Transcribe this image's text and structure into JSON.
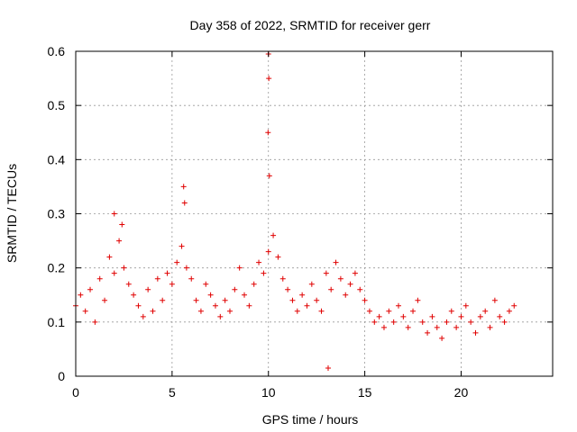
{
  "colors": {
    "series": "#e00000",
    "grid": "#999999",
    "axis": "#000000"
  },
  "chart_data": {
    "type": "scatter",
    "title": "Day 358 of 2022, SRMTID for receiver gerr",
    "xlabel": "GPS time / hours",
    "ylabel": "SRMTID / TECUs",
    "xlim": [
      0,
      24.75
    ],
    "ylim": [
      0,
      0.6
    ],
    "xticks": [
      0,
      5,
      10,
      15,
      20
    ],
    "xtick_labels": [
      "0",
      "5",
      "10",
      "15",
      "20"
    ],
    "yticks": [
      0,
      0.1,
      0.2,
      0.3,
      0.4,
      0.5,
      0.6
    ],
    "ytick_labels": [
      "0",
      "0.1",
      "0.2",
      "0.3",
      "0.4",
      "0.5",
      "0.6"
    ],
    "grid": true,
    "marker": "+",
    "series": [
      {
        "name": "SRMTID",
        "x": [
          0.0,
          0.25,
          0.5,
          0.75,
          1.0,
          1.25,
          1.5,
          1.75,
          2.0,
          2.25,
          2.5,
          2.75,
          3.0,
          3.25,
          3.5,
          3.75,
          4.0,
          4.25,
          4.5,
          4.75,
          5.0,
          5.25,
          5.5,
          5.75,
          6.0,
          6.25,
          6.5,
          6.75,
          7.0,
          7.25,
          7.5,
          7.75,
          8.0,
          8.25,
          8.5,
          8.75,
          9.0,
          9.25,
          9.5,
          9.75,
          10.0,
          10.25,
          10.5,
          10.75,
          11.0,
          11.25,
          11.5,
          11.75,
          12.0,
          12.25,
          12.5,
          12.75,
          13.0,
          13.25,
          13.5,
          13.75,
          14.0,
          14.25,
          14.5,
          14.75,
          15.0,
          15.25,
          15.5,
          15.75,
          16.0,
          16.25,
          16.5,
          16.75,
          17.0,
          17.25,
          17.5,
          17.75,
          18.0,
          18.25,
          18.5,
          18.75,
          19.0,
          19.25,
          19.5,
          19.75,
          20.0,
          20.25,
          20.5,
          20.75,
          21.0,
          21.25,
          21.5,
          21.75,
          22.0,
          22.25,
          22.5,
          22.75,
          9.98,
          10.0,
          10.02,
          10.05,
          5.6,
          5.65,
          13.1,
          2.0,
          2.4
        ],
        "y": [
          0.13,
          0.15,
          0.12,
          0.16,
          0.1,
          0.18,
          0.14,
          0.22,
          0.19,
          0.25,
          0.2,
          0.17,
          0.15,
          0.13,
          0.11,
          0.16,
          0.12,
          0.18,
          0.14,
          0.19,
          0.17,
          0.21,
          0.24,
          0.2,
          0.18,
          0.14,
          0.12,
          0.17,
          0.15,
          0.13,
          0.11,
          0.14,
          0.12,
          0.16,
          0.2,
          0.15,
          0.13,
          0.17,
          0.21,
          0.19,
          0.23,
          0.26,
          0.22,
          0.18,
          0.16,
          0.14,
          0.12,
          0.15,
          0.13,
          0.17,
          0.14,
          0.12,
          0.19,
          0.16,
          0.21,
          0.18,
          0.15,
          0.17,
          0.19,
          0.16,
          0.14,
          0.12,
          0.1,
          0.11,
          0.09,
          0.12,
          0.1,
          0.13,
          0.11,
          0.09,
          0.12,
          0.14,
          0.1,
          0.08,
          0.11,
          0.09,
          0.07,
          0.1,
          0.12,
          0.09,
          0.11,
          0.13,
          0.1,
          0.08,
          0.11,
          0.12,
          0.09,
          0.14,
          0.11,
          0.1,
          0.12,
          0.13,
          0.45,
          0.595,
          0.55,
          0.37,
          0.35,
          0.32,
          0.015,
          0.3,
          0.28
        ]
      }
    ]
  }
}
